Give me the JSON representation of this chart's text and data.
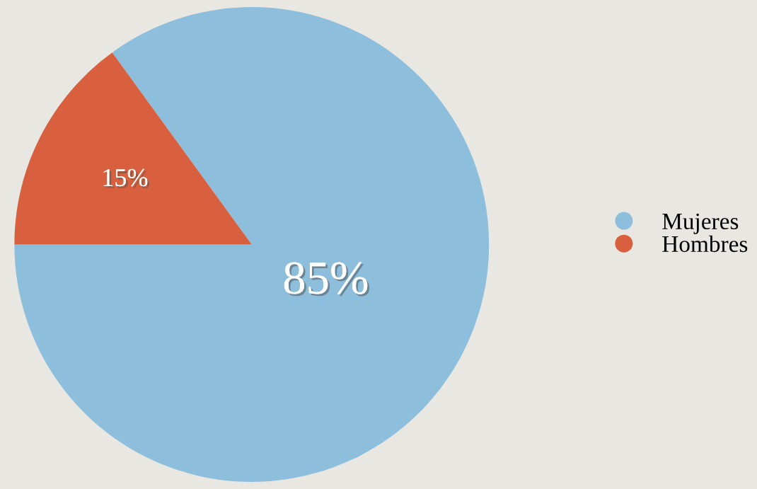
{
  "chart_data": {
    "type": "pie",
    "categories": [
      "Mujeres",
      "Hombres"
    ],
    "values": [
      85,
      15
    ],
    "colors": [
      "#8dbfdc",
      "#d9603e"
    ],
    "value_labels": [
      "85%",
      "15%"
    ],
    "legend": "right"
  }
}
